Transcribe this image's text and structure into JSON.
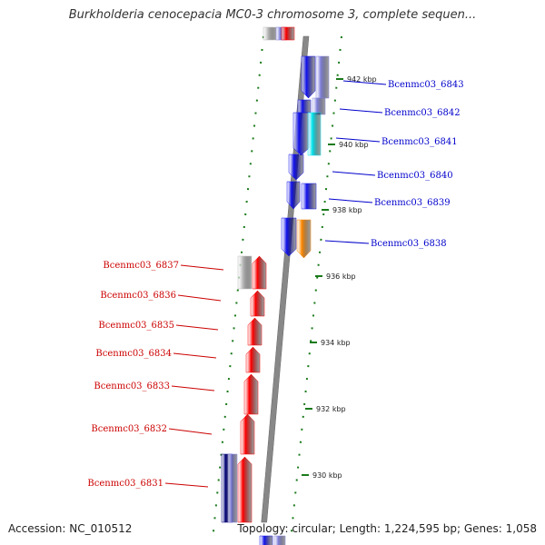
{
  "title": "Burkholderia cenocepacia MC0-3 chromosome 3, complete sequen...",
  "footer": {
    "accession": "Accession: NC_010512",
    "topology": "Topology: circular; Length: 1,224,595 bp; Genes: 1,058"
  },
  "colors": {
    "right_gene_labels": "#0000cc",
    "left_gene_labels": "#cc0000",
    "tick_marks": "#1a7a1a",
    "backbone": "#888888",
    "gene_red": "#ff0000",
    "gene_blue": "#1111ee",
    "gene_lavender": "#7f7fdd",
    "gene_cyan": "#00e5ee",
    "gene_orange": "#ff8800",
    "gene_gray": "#bbbbbb",
    "gene_navy": "#000077"
  },
  "scale_labels": [
    "942 kbp",
    "940 kbp",
    "938 kbp",
    "936 kbp",
    "934 kbp",
    "932 kbp",
    "930 kbp"
  ],
  "right_labels": [
    "Bcenmc03_6843",
    "Bcenmc03_6842",
    "Bcenmc03_6841",
    "Bcenmc03_6840",
    "Bcenmc03_6839",
    "Bcenmc03_6838"
  ],
  "left_labels": [
    "Bcenmc03_6837",
    "Bcenmc03_6836",
    "Bcenmc03_6835",
    "Bcenmc03_6834",
    "Bcenmc03_6833",
    "Bcenmc03_6832",
    "Bcenmc03_6831"
  ]
}
